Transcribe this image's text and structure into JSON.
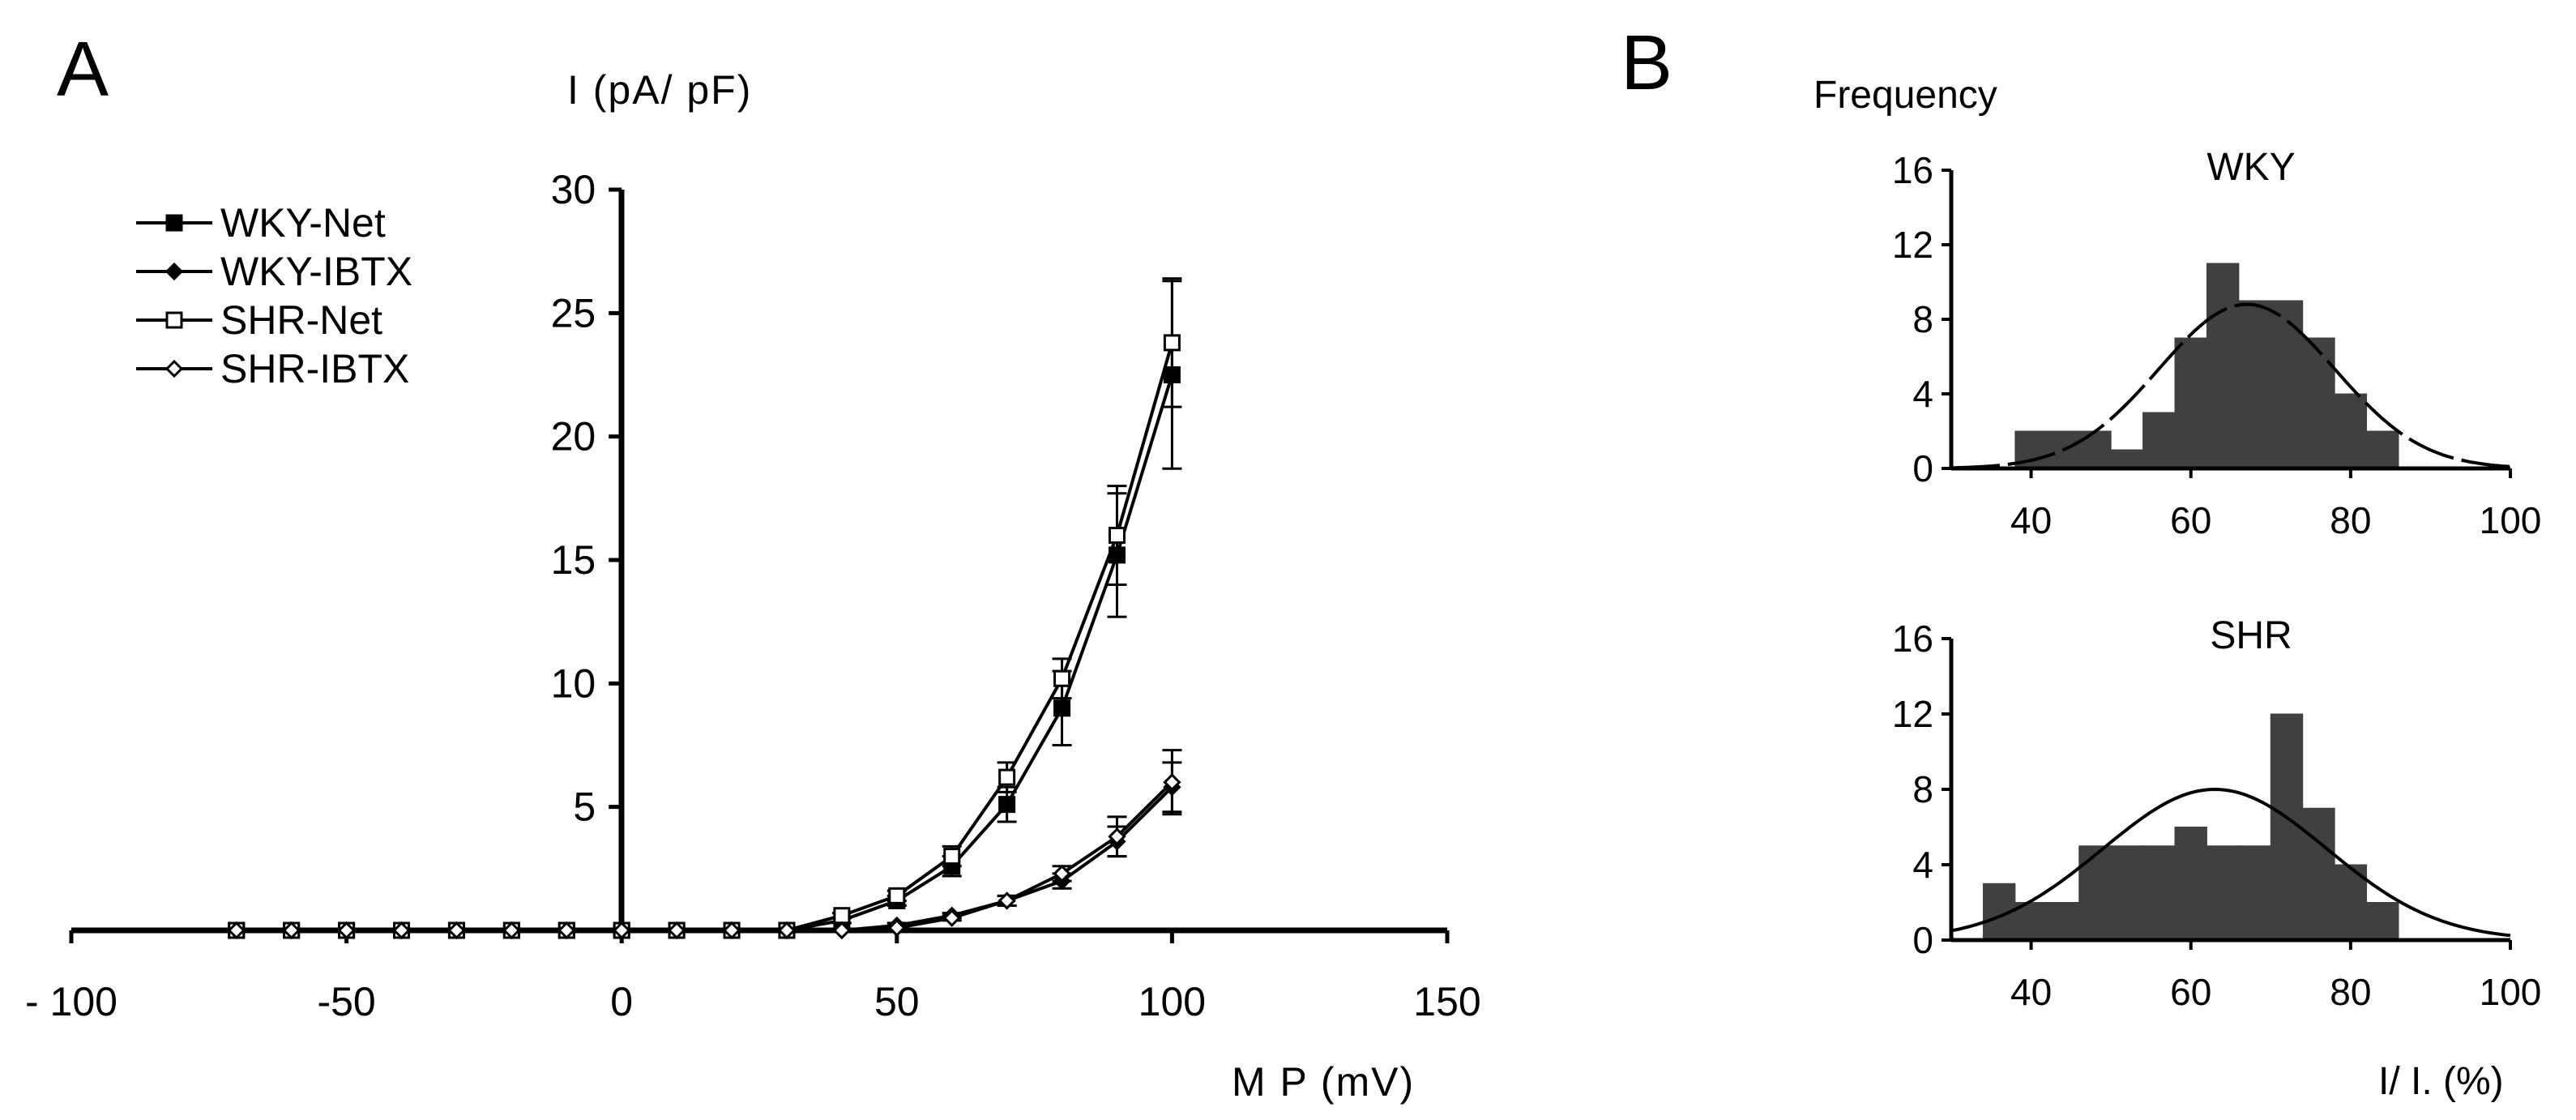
{
  "panel_labels": [
    "A",
    "B"
  ],
  "chart_data": [
    {
      "type": "line",
      "panel": "A",
      "xlabel": "M P (mV)",
      "ylabel": "I (pA/ pF)",
      "xlim": [
        -100,
        150
      ],
      "ylim": [
        0,
        30
      ],
      "xticks": [
        -100,
        -50,
        0,
        50,
        100,
        150
      ],
      "xtick_labels": [
        "- 100",
        "-50",
        "0",
        "50",
        "100",
        "150"
      ],
      "yticks": [
        5,
        10,
        15,
        20,
        25,
        30
      ],
      "ytick_labels": [
        "5",
        "10",
        "15",
        "20",
        "25",
        "30"
      ],
      "legend_position": "top-left",
      "grid": false,
      "x": [
        -70,
        -60,
        -50,
        -40,
        -30,
        -20,
        -10,
        0,
        10,
        20,
        30,
        40,
        50,
        60,
        70,
        80,
        90,
        100
      ],
      "series": [
        {
          "name": "WKY-Net",
          "marker": "filled-square",
          "color": "#000000",
          "values": [
            0,
            0,
            0,
            0,
            0,
            0,
            0,
            0,
            0,
            0,
            0,
            0.4,
            1.2,
            2.6,
            5.1,
            9.0,
            15.2,
            22.5
          ],
          "errors": [
            0,
            0,
            0,
            0,
            0,
            0,
            0,
            0,
            0,
            0,
            0,
            0.1,
            0.2,
            0.4,
            0.7,
            1.5,
            2.5,
            3.8
          ]
        },
        {
          "name": "WKY-IBTX",
          "marker": "filled-diamond",
          "color": "#000000",
          "values": [
            0,
            0,
            0,
            0,
            0,
            0,
            0,
            0,
            0,
            0,
            0,
            0,
            0.2,
            0.6,
            1.2,
            2.0,
            3.6,
            5.8
          ],
          "errors": [
            0,
            0,
            0,
            0,
            0,
            0,
            0,
            0,
            0,
            0,
            0,
            0,
            0.1,
            0.1,
            0.2,
            0.3,
            0.6,
            1.0
          ]
        },
        {
          "name": "SHR-Net",
          "marker": "open-square",
          "color": "#000000",
          "values": [
            0,
            0,
            0,
            0,
            0,
            0,
            0,
            0,
            0,
            0,
            0,
            0.6,
            1.4,
            3.0,
            6.2,
            10.2,
            16.0,
            23.8
          ],
          "errors": [
            0,
            0,
            0,
            0,
            0,
            0,
            0,
            0,
            0,
            0,
            0,
            0.1,
            0.2,
            0.4,
            0.6,
            0.8,
            2.0,
            2.6
          ]
        },
        {
          "name": "SHR-IBTX",
          "marker": "open-diamond",
          "color": "#000000",
          "values": [
            0,
            0,
            0,
            0,
            0,
            0,
            0,
            0,
            0,
            0,
            0,
            0,
            0.1,
            0.5,
            1.2,
            2.3,
            3.8,
            6.0
          ],
          "errors": [
            0,
            0,
            0,
            0,
            0,
            0,
            0,
            0,
            0,
            0,
            0,
            0,
            0.1,
            0.1,
            0.2,
            0.3,
            0.8,
            1.3
          ]
        }
      ]
    },
    {
      "type": "bar",
      "panel": "B",
      "title": "WKY",
      "ylabel": "Frequency",
      "xlim": [
        30,
        100
      ],
      "ylim": [
        0,
        16
      ],
      "xticks": [
        40,
        60,
        80,
        100
      ],
      "yticks": [
        0,
        4,
        8,
        12,
        16
      ],
      "bin_width": 4,
      "bin_starts": [
        38,
        42,
        46,
        50,
        54,
        58,
        62,
        66,
        70,
        74,
        78,
        82,
        86
      ],
      "values": [
        2,
        2,
        2,
        1,
        3,
        7,
        11,
        9,
        9,
        7,
        4,
        2,
        0
      ],
      "bar_color": "#404040",
      "fit": {
        "type": "gaussian",
        "mean": 67,
        "sd": 11,
        "peak": 8.8,
        "style": "dashed"
      }
    },
    {
      "type": "bar",
      "panel": "B",
      "title": "SHR",
      "xlabel": "I/ I. (%)",
      "xlim": [
        30,
        100
      ],
      "ylim": [
        0,
        16
      ],
      "xticks": [
        40,
        60,
        80,
        100
      ],
      "yticks": [
        0,
        4,
        8,
        12,
        16
      ],
      "bin_width": 4,
      "bin_starts": [
        34,
        38,
        42,
        46,
        50,
        54,
        58,
        62,
        66,
        70,
        74,
        78,
        82,
        86
      ],
      "values": [
        3,
        2,
        2,
        5,
        5,
        5,
        6,
        5,
        5,
        12,
        7,
        4,
        2,
        0
      ],
      "bar_color": "#404040",
      "fit": {
        "type": "gaussian",
        "mean": 63,
        "sd": 14,
        "peak": 8,
        "style": "solid"
      }
    }
  ]
}
